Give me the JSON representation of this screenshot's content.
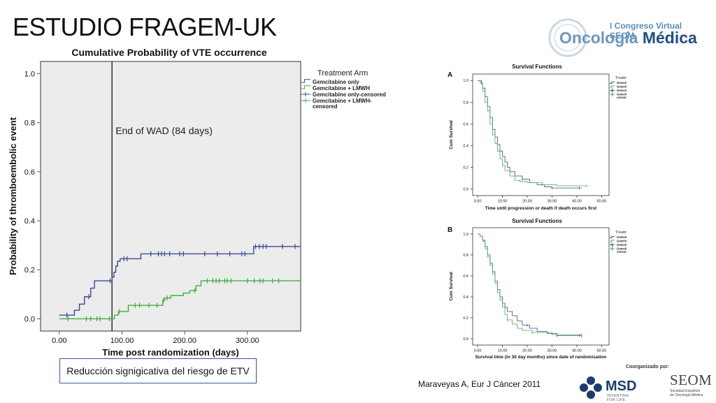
{
  "slide": {
    "title": "ESTUDIO FRAGEM-UK",
    "note": "Reducción signigicativa del riesgo de ETV",
    "citation": "Maraveyas A, Eur J Cáncer 2011",
    "coorganized": "Coorganizado por:"
  },
  "logo": {
    "congreso": "I Congreso Virtual SEOM",
    "onco_prefix": "ncología",
    "onco_letter": "O",
    "onco_word": "Médica"
  },
  "sponsors": {
    "msd": "MSD",
    "msd_tagline": "INVENTING FOR LIFE",
    "seom": "SEOM",
    "seom_line1": "Sociedad Española",
    "seom_line2": "de Oncología Médica"
  },
  "colors": {
    "gem": "#3a4a9a",
    "lmwh": "#3cb33c",
    "plot_bg": "#ececec",
    "grid_line": "#222222"
  },
  "chart_data": [
    {
      "type": "line",
      "title": "Cumulative Probability of VTE occurrence",
      "xlabel": "Time post randomization (days)",
      "ylabel": "Probability of thromboembolic event",
      "xlim": [
        -30,
        385
      ],
      "ylim": [
        -0.05,
        1.05
      ],
      "x_ticks": [
        "0.00",
        "100.00",
        "200.00",
        "300.00"
      ],
      "x_tick_values": [
        0,
        100,
        200,
        300
      ],
      "y_ticks": [
        "0.0",
        "0.2",
        "0.4",
        "0.6",
        "0.8",
        "1.0"
      ],
      "y_tick_values": [
        0,
        0.2,
        0.4,
        0.6,
        0.8,
        1.0
      ],
      "annotation": {
        "text": "End of WAD (84 days)",
        "x": 84
      },
      "legend_title": "Treatment Arm",
      "legend_items": [
        "Gemcitabine only",
        "Gemcitabine + LMWH",
        "Gemcitabine only-censored",
        "Gemcitabine + LMWH-censored"
      ],
      "legend_position": "right",
      "series": [
        {
          "name": "Gemcitabine only",
          "x": [
            0,
            14,
            24,
            32,
            40,
            50,
            56,
            80,
            84,
            87,
            90,
            93,
            97,
            130,
            300,
            310,
            385
          ],
          "y": [
            0.015,
            0.015,
            0.035,
            0.06,
            0.09,
            0.125,
            0.155,
            0.155,
            0.17,
            0.19,
            0.215,
            0.235,
            0.245,
            0.265,
            0.265,
            0.295,
            0.295
          ],
          "censored_x": [
            12,
            47,
            81,
            103,
            108,
            146,
            158,
            163,
            168,
            176,
            192,
            198,
            232,
            252,
            272,
            291,
            296,
            313,
            319,
            325,
            330,
            356,
            376
          ]
        },
        {
          "name": "Gemcitabine + LMWH",
          "x": [
            0,
            84,
            88,
            94,
            110,
            150,
            165,
            168,
            178,
            198,
            208,
            218,
            226,
            385
          ],
          "y": [
            0.0,
            0.0,
            0.015,
            0.03,
            0.055,
            0.055,
            0.075,
            0.085,
            0.095,
            0.105,
            0.115,
            0.135,
            0.155,
            0.155
          ],
          "censored_x": [
            14,
            43,
            50,
            60,
            65,
            80,
            96,
            121,
            128,
            143,
            156,
            166,
            172,
            216,
            236,
            245,
            250,
            255,
            264,
            268,
            274,
            300,
            311,
            320,
            325,
            340,
            350
          ]
        }
      ]
    },
    {
      "type": "line",
      "panel_label": "A",
      "title": "Survival Functions",
      "xlabel": "Time until progression or death if death occurs first",
      "ylabel": "Cum Survival",
      "xlim": [
        -2,
        53
      ],
      "ylim": [
        -0.06,
        1.06
      ],
      "x_ticks": [
        "0.00",
        "10.00",
        "20.00",
        "30.00",
        "40.00",
        "50.00"
      ],
      "x_tick_values": [
        0,
        10,
        20,
        30,
        40,
        50
      ],
      "y_ticks": [
        "0.0",
        "0.2",
        "0.4",
        "0.6",
        "0.8",
        "1.0"
      ],
      "y_tick_values": [
        0,
        0.2,
        0.4,
        0.6,
        0.8,
        1.0
      ],
      "legend_title": "Treatment Arm",
      "legend_items": [
        "Gemcitabine only",
        "Gemcitabine + LMWH",
        "Gemcitabine only-censored",
        "Gemcitabine + LMWH-censored"
      ],
      "series": [
        {
          "name": "Gemcitabine only",
          "x": [
            0,
            1,
            1.5,
            2,
            3,
            4,
            5,
            6,
            7,
            8,
            9,
            10,
            11,
            12,
            13,
            15,
            18,
            21,
            24,
            27,
            30,
            42
          ],
          "y": [
            1.0,
            1.0,
            0.97,
            0.93,
            0.85,
            0.76,
            0.66,
            0.55,
            0.48,
            0.41,
            0.35,
            0.3,
            0.25,
            0.2,
            0.16,
            0.12,
            0.09,
            0.06,
            0.04,
            0.02,
            0.01,
            0.01
          ],
          "censored_x": [
            18,
            30,
            41
          ]
        },
        {
          "name": "Gemcitabine + LMWH",
          "x": [
            0,
            1,
            2,
            3,
            4,
            5,
            6,
            7,
            8,
            9,
            10,
            11,
            13,
            15,
            17,
            20,
            26,
            32,
            44
          ],
          "y": [
            1.0,
            0.98,
            0.9,
            0.8,
            0.72,
            0.6,
            0.5,
            0.42,
            0.35,
            0.28,
            0.22,
            0.17,
            0.12,
            0.08,
            0.07,
            0.06,
            0.04,
            0.03,
            0.03
          ],
          "censored_x": [
            10,
            26,
            44
          ]
        }
      ]
    },
    {
      "type": "line",
      "panel_label": "B",
      "title": "Survival Functions",
      "xlabel": "Survival time (in 30 day months) since date of randomisation",
      "ylabel": "Cum Survival",
      "xlim": [
        -2,
        53
      ],
      "ylim": [
        -0.06,
        1.06
      ],
      "x_ticks": [
        "0.00",
        "10.00",
        "20.00",
        "30.00",
        "40.00",
        "50.00"
      ],
      "x_tick_values": [
        0,
        10,
        20,
        30,
        40,
        50
      ],
      "y_ticks": [
        "0.0",
        "0.2",
        "0.4",
        "0.6",
        "0.8",
        "1.0"
      ],
      "y_tick_values": [
        0,
        0.2,
        0.4,
        0.6,
        0.8,
        1.0
      ],
      "legend_title": "Treatment Arm",
      "legend_items": [
        "Gemcitabine only",
        "Gemcitabine + LMWH",
        "Gemcitabine only-censored",
        "Gemcitabine + LMWH-censored"
      ],
      "series": [
        {
          "name": "Gemcitabine only",
          "x": [
            0,
            1,
            2,
            3,
            4,
            5,
            6,
            7,
            8,
            9,
            10,
            11,
            12,
            14,
            16,
            18,
            21,
            24,
            28,
            32,
            42
          ],
          "y": [
            1.0,
            0.98,
            0.94,
            0.88,
            0.8,
            0.72,
            0.64,
            0.55,
            0.47,
            0.4,
            0.34,
            0.3,
            0.26,
            0.22,
            0.17,
            0.13,
            0.1,
            0.07,
            0.05,
            0.03,
            0.01
          ],
          "censored_x": [
            20,
            32,
            41
          ]
        },
        {
          "name": "Gemcitabine + LMWH",
          "x": [
            0,
            1,
            2,
            3,
            4,
            5,
            6,
            7,
            8,
            9,
            10,
            11,
            12,
            14,
            16,
            18,
            22,
            30,
            42
          ],
          "y": [
            1.0,
            0.98,
            0.93,
            0.86,
            0.78,
            0.7,
            0.62,
            0.53,
            0.44,
            0.37,
            0.3,
            0.23,
            0.18,
            0.14,
            0.1,
            0.08,
            0.06,
            0.04,
            0.04
          ],
          "censored_x": [
            12,
            22,
            42
          ]
        }
      ]
    }
  ]
}
